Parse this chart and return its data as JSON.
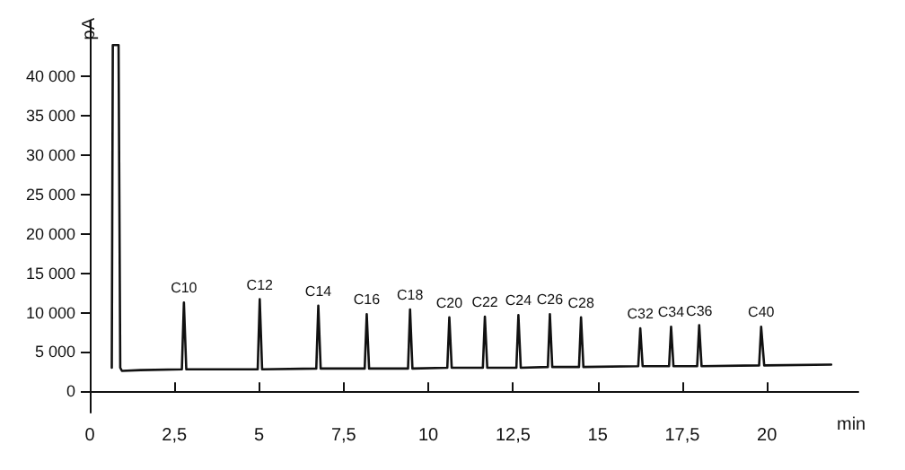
{
  "chart_data": {
    "type": "line",
    "xlabel": "min",
    "ylabel": "pA",
    "xlim": [
      0,
      22.7
    ],
    "ylim": [
      -2700,
      47000
    ],
    "xticks": [
      0,
      {
        "value": 2.5,
        "label": "2,5"
      },
      5,
      {
        "value": 7.5,
        "label": "7,5"
      },
      10,
      {
        "value": 12.5,
        "label": "12,5"
      },
      15,
      {
        "value": 17.5,
        "label": "17,5"
      },
      20
    ],
    "yticks": [
      0,
      {
        "value": 5000,
        "label": "5 000"
      },
      {
        "value": 10000,
        "label": "10 000"
      },
      {
        "value": 15000,
        "label": "15 000"
      },
      {
        "value": 20000,
        "label": "20 000"
      },
      {
        "value": 25000,
        "label": "25 000"
      },
      {
        "value": 30000,
        "label": "30 000"
      },
      {
        "value": 35000,
        "label": "35 000"
      },
      {
        "value": 40000,
        "label": "40 000"
      }
    ],
    "grid": false,
    "marker": "none",
    "line_style": "solid",
    "series": [
      {
        "color": "#111111",
        "x": [
          0.65,
          0.68,
          0.85,
          0.9,
          0.95,
          1.5,
          2.72,
          2.78,
          2.85,
          4.96,
          5.02,
          5.09,
          6.69,
          6.75,
          6.82,
          8.12,
          8.18,
          8.25,
          9.4,
          9.46,
          9.53,
          10.56,
          10.62,
          10.69,
          11.61,
          11.67,
          11.74,
          12.6,
          12.66,
          12.73,
          13.53,
          13.59,
          13.66,
          14.45,
          14.51,
          14.58,
          16.2,
          16.26,
          16.33,
          17.11,
          17.17,
          17.24,
          17.94,
          18.0,
          18.07,
          19.77,
          19.83,
          19.92,
          21.9
        ],
        "values": [
          3000,
          44000,
          44000,
          3000,
          2600,
          2700,
          2800,
          11300,
          2800,
          2800,
          11700,
          2800,
          2900,
          10900,
          2900,
          2900,
          9800,
          2900,
          2900,
          10400,
          2900,
          3000,
          9400,
          3000,
          3000,
          9500,
          3000,
          3000,
          9700,
          3000,
          3100,
          9800,
          3100,
          3100,
          9400,
          3100,
          3200,
          8000,
          3200,
          3200,
          8200,
          3200,
          3200,
          8400,
          3200,
          3300,
          8200,
          3300,
          3400
        ]
      }
    ],
    "annotations": [
      {
        "text": "C10",
        "x": 2.78,
        "y": 11300
      },
      {
        "text": "C12",
        "x": 5.02,
        "y": 11700
      },
      {
        "text": "C14",
        "x": 6.75,
        "y": 10900
      },
      {
        "text": "C16",
        "x": 8.18,
        "y": 9800
      },
      {
        "text": "C18",
        "x": 9.46,
        "y": 10400
      },
      {
        "text": "C20",
        "x": 10.62,
        "y": 9400
      },
      {
        "text": "C22",
        "x": 11.67,
        "y": 9500
      },
      {
        "text": "C24",
        "x": 12.66,
        "y": 9700
      },
      {
        "text": "C26",
        "x": 13.59,
        "y": 9800
      },
      {
        "text": "C28",
        "x": 14.51,
        "y": 9400
      },
      {
        "text": "C32",
        "x": 16.26,
        "y": 8000
      },
      {
        "text": "C34",
        "x": 17.17,
        "y": 8200
      },
      {
        "text": "C36",
        "x": 18.0,
        "y": 8400
      },
      {
        "text": "C40",
        "x": 19.83,
        "y": 8200
      }
    ]
  }
}
